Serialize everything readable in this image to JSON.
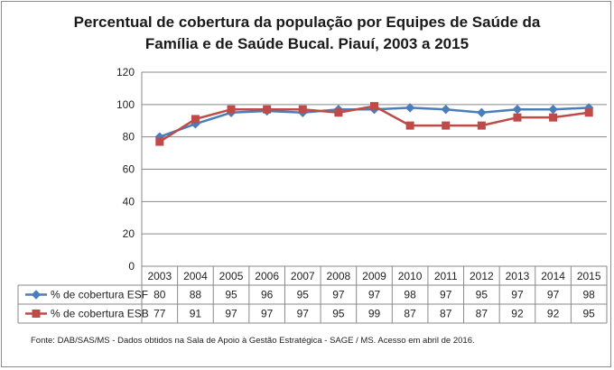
{
  "chart_data": {
    "type": "line",
    "title": "Percentual de cobertura da população por Equipes de Saúde da Família e de Saúde Bucal. Piauí, 2003 a 2015",
    "title_lines": [
      "Percentual de cobertura da população por Equipes de Saúde da",
      "Família e de Saúde Bucal. Piauí, 2003 a 2015"
    ],
    "categories": [
      "2003",
      "2004",
      "2005",
      "2006",
      "2007",
      "2008",
      "2009",
      "2010",
      "2011",
      "2012",
      "2013",
      "2014",
      "2015"
    ],
    "series": [
      {
        "name": "% de cobertura ESF",
        "values": [
          80,
          88,
          95,
          96,
          95,
          97,
          97,
          98,
          97,
          95,
          97,
          97,
          98
        ],
        "color": "#4a7ebb",
        "marker": "diamond"
      },
      {
        "name": "% de cobertura ESB",
        "values": [
          77,
          91,
          97,
          97,
          97,
          95,
          99,
          87,
          87,
          87,
          92,
          92,
          95
        ],
        "color": "#be4b48",
        "marker": "square"
      }
    ],
    "yticks": [
      0,
      20,
      40,
      60,
      80,
      100,
      120
    ],
    "ylim": [
      0,
      120
    ],
    "xlabel": "",
    "ylabel": "",
    "grid": "horizontal",
    "legend": "data-table-left",
    "source": "Fonte:  DAB/SAS/MS - Dados obtidos na Sala de Apoio à Gestão Estratégica - SAGE / MS. Acesso em abril de 2016."
  }
}
